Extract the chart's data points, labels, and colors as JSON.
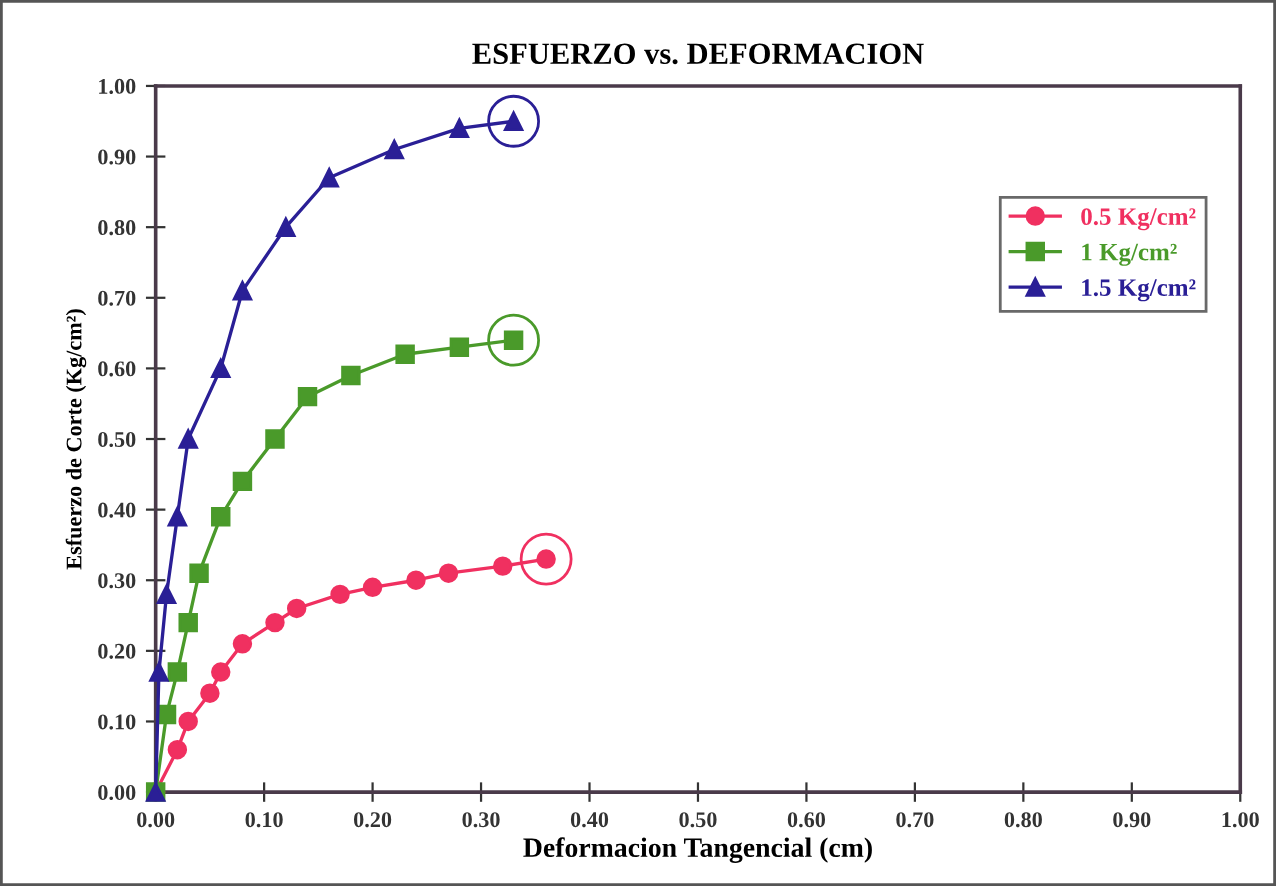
{
  "chart_data": {
    "type": "line",
    "title": "ESFUERZO vs. DEFORMACION",
    "xlabel": "Deformacion Tangencial (cm)",
    "ylabel": "Esfuerzo de Corte (Kg/cm²)",
    "xlim": [
      0,
      1
    ],
    "ylim": [
      0,
      1
    ],
    "xticks": [
      {
        "value": 0,
        "label": "0.00"
      },
      {
        "value": 0.1,
        "label": "0.10"
      },
      {
        "value": 0.2,
        "label": "0.20"
      },
      {
        "value": 0.3,
        "label": "0.30"
      },
      {
        "value": 0.4,
        "label": "0.40"
      },
      {
        "value": 0.5,
        "label": "0.50"
      },
      {
        "value": 0.6,
        "label": "0.60"
      },
      {
        "value": 0.7,
        "label": "0.70"
      },
      {
        "value": 0.8,
        "label": "0.80"
      },
      {
        "value": 0.9,
        "label": "0.90"
      },
      {
        "value": 1,
        "label": "1.00"
      }
    ],
    "yticks": [
      {
        "value": 0,
        "label": "0.00"
      },
      {
        "value": 0.1,
        "label": "0.10"
      },
      {
        "value": 0.2,
        "label": "0.20"
      },
      {
        "value": 0.3,
        "label": "0.30"
      },
      {
        "value": 0.4,
        "label": "0.40"
      },
      {
        "value": 0.5,
        "label": "0.50"
      },
      {
        "value": 0.6,
        "label": "0.60"
      },
      {
        "value": 0.7,
        "label": "0.70"
      },
      {
        "value": 0.8,
        "label": "0.80"
      },
      {
        "value": 0.9,
        "label": "0.90"
      },
      {
        "value": 1,
        "label": "1.00"
      }
    ],
    "grid": false,
    "legend": "top right",
    "series": [
      {
        "name": "0.5 Kg/cm²",
        "color": "#f03060",
        "marker": "circle",
        "x": [
          0,
          0.02,
          0.03,
          0.05,
          0.06,
          0.08,
          0.11,
          0.13,
          0.17,
          0.2,
          0.24,
          0.27,
          0.32,
          0.36
        ],
        "values": [
          0,
          0.06,
          0.1,
          0.14,
          0.17,
          0.21,
          0.24,
          0.26,
          0.28,
          0.29,
          0.3,
          0.31,
          0.32,
          0.33
        ]
      },
      {
        "name": "1 Kg/cm²",
        "color": "#4a9a2a",
        "marker": "square",
        "x": [
          0,
          0.01,
          0.02,
          0.03,
          0.04,
          0.06,
          0.08,
          0.11,
          0.14,
          0.18,
          0.23,
          0.28,
          0.33
        ],
        "values": [
          0,
          0.11,
          0.17,
          0.24,
          0.31,
          0.39,
          0.44,
          0.5,
          0.56,
          0.59,
          0.62,
          0.63,
          0.64
        ]
      },
      {
        "name": "1.5 Kg/cm²",
        "color": "#2a1f96",
        "marker": "triangle",
        "x": [
          0,
          0.003,
          0.01,
          0.02,
          0.03,
          0.06,
          0.08,
          0.12,
          0.16,
          0.22,
          0.28,
          0.33
        ],
        "values": [
          0,
          0.17,
          0.28,
          0.39,
          0.5,
          0.6,
          0.71,
          0.8,
          0.87,
          0.91,
          0.94,
          0.95
        ]
      }
    ]
  }
}
